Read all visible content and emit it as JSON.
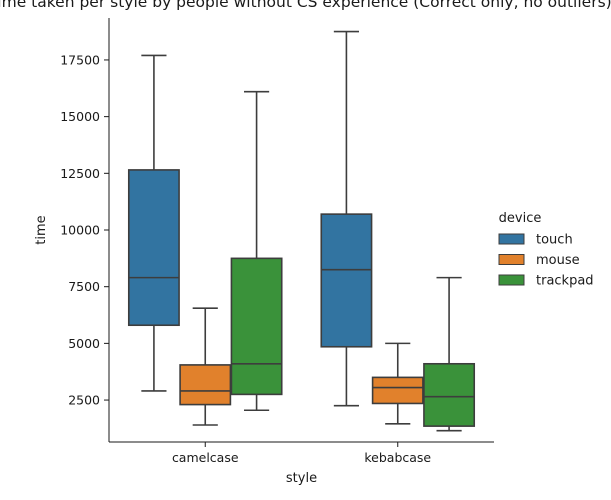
{
  "chart_data": {
    "type": "box",
    "title": "Time taken per style by people without CS experience (Correct only, no outliers)",
    "xlabel": "style",
    "ylabel": "time",
    "categories": [
      "camelcase",
      "kebabcase"
    ],
    "ylim": [
      650,
      19350
    ],
    "yticks": [
      2500,
      5000,
      7500,
      10000,
      12500,
      15000,
      17500
    ],
    "legend": {
      "title": "device",
      "placement": "right"
    },
    "series": [
      {
        "name": "touch",
        "color": "#3274a1",
        "boxes": [
          {
            "whislo": 2900,
            "q1": 5800,
            "med": 7900,
            "q3": 12650,
            "whishi": 17700
          },
          {
            "whislo": 2250,
            "q1": 4850,
            "med": 8250,
            "q3": 10700,
            "whishi": 18750
          }
        ]
      },
      {
        "name": "mouse",
        "color": "#e1812c",
        "boxes": [
          {
            "whislo": 1400,
            "q1": 2300,
            "med": 2900,
            "q3": 4050,
            "whishi": 6550
          },
          {
            "whislo": 1450,
            "q1": 2350,
            "med": 3050,
            "q3": 3500,
            "whishi": 5000
          }
        ]
      },
      {
        "name": "trackpad",
        "color": "#3a923a",
        "boxes": [
          {
            "whislo": 2050,
            "q1": 2750,
            "med": 4100,
            "q3": 8750,
            "whishi": 16100
          },
          {
            "whislo": 1150,
            "q1": 1350,
            "med": 2650,
            "q3": 4100,
            "whishi": 7900
          }
        ]
      }
    ]
  }
}
